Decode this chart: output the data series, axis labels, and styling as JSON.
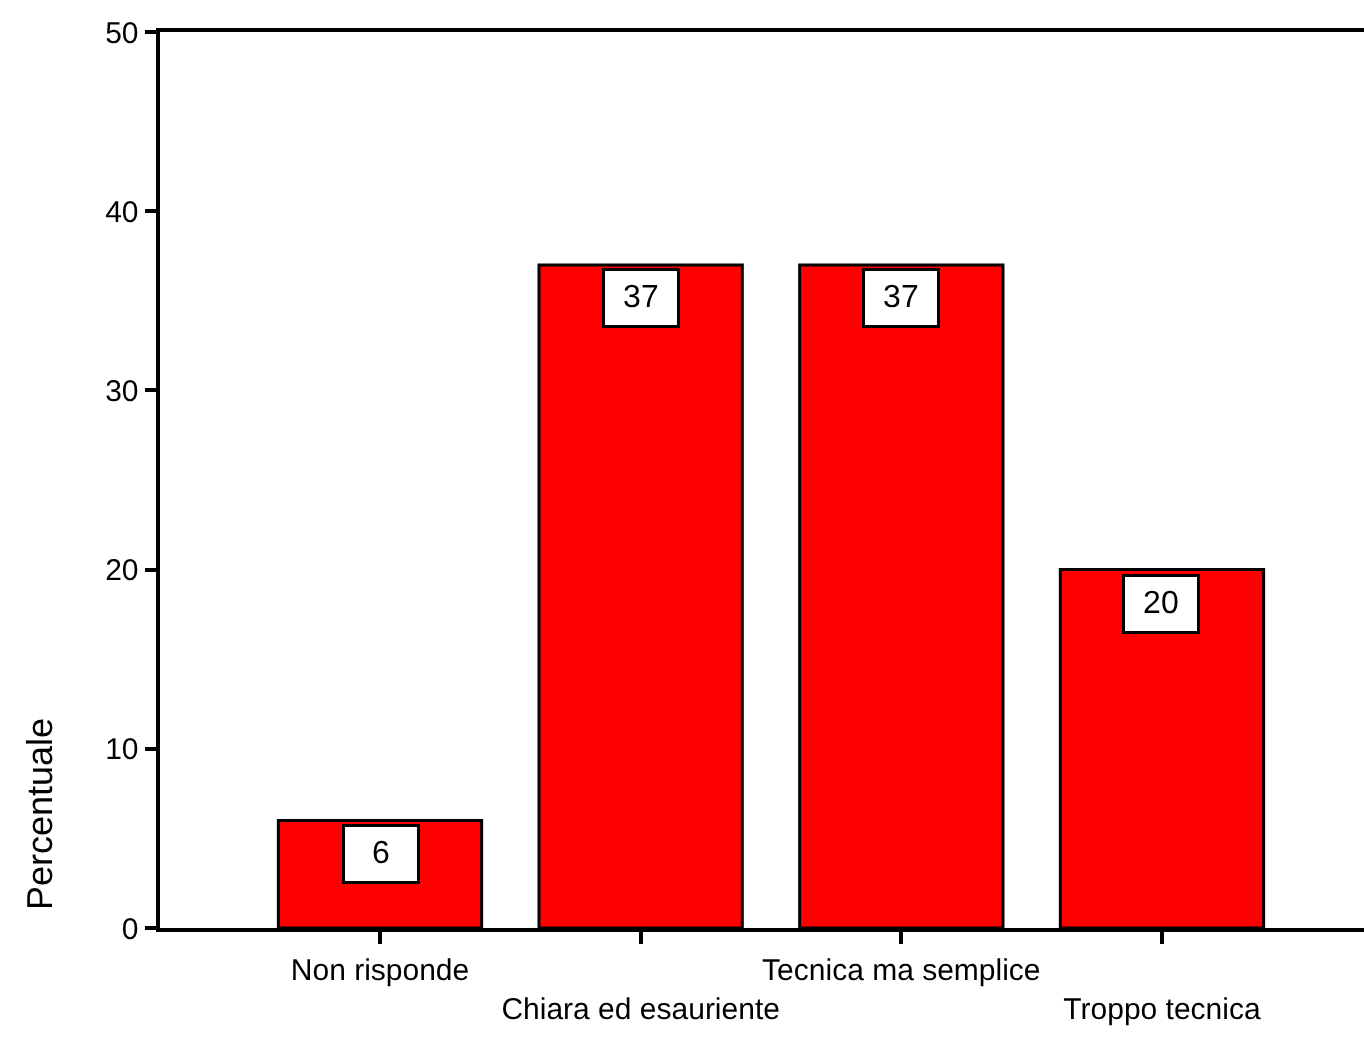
{
  "chart_data": {
    "type": "bar",
    "ylabel": "Percentuale",
    "categories": [
      "Non risponde",
      "Chiara ed esauriente",
      "Tecnica ma semplice",
      "Troppo tecnica"
    ],
    "values": [
      6,
      37,
      37,
      20
    ],
    "color": "#ff0000",
    "data_labels": true,
    "ylim": [
      0,
      50
    ],
    "yticks": [
      0,
      10,
      20,
      30,
      40,
      50
    ]
  }
}
